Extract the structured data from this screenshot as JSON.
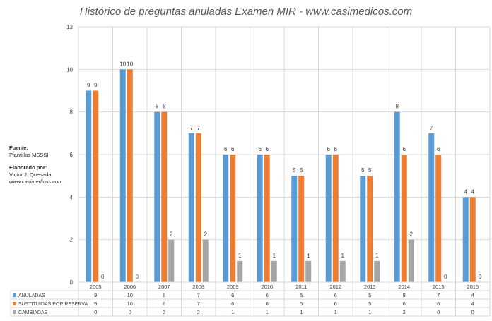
{
  "chart_data": {
    "type": "bar",
    "title": "Histórico de preguntas anuladas Examen MIR - www.casimedicos.com",
    "categories": [
      "2005",
      "2006",
      "2007",
      "2008",
      "2009",
      "2010",
      "2011",
      "2012",
      "2013",
      "2014",
      "2015",
      "2016"
    ],
    "ylim": [
      0,
      12
    ],
    "yticks": [
      0,
      2,
      4,
      6,
      8,
      10,
      12
    ],
    "grid": true,
    "legend_placement": "data table below chart",
    "series": [
      {
        "name": "ANULADAS",
        "color": "#5b9bd5",
        "values": [
          9,
          10,
          8,
          7,
          6,
          6,
          5,
          6,
          5,
          8,
          7,
          4
        ]
      },
      {
        "name": "SUSTITUIDAS POR RESERVA",
        "color": "#ed7d31",
        "values": [
          9,
          10,
          8,
          7,
          6,
          6,
          5,
          6,
          5,
          6,
          6,
          4
        ]
      },
      {
        "name": "CAMBIADAS",
        "color": "#a5a5a5",
        "values": [
          0,
          0,
          2,
          2,
          1,
          1,
          1,
          1,
          1,
          2,
          0,
          0
        ]
      }
    ]
  },
  "notes": {
    "fuente_label": "Fuente:",
    "fuente_value": "Plantillas MSSSI",
    "elaborado_label": "Elaborado por:",
    "elaborado_name": "Victor J. Quesada",
    "elaborado_site": "www.casimedicos.com"
  }
}
